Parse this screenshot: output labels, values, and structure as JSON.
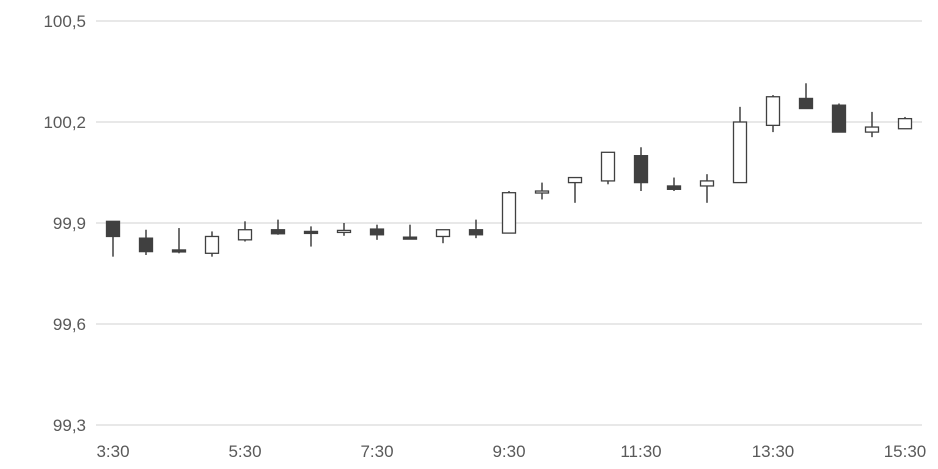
{
  "chart_data": {
    "type": "candlestick",
    "title": "",
    "xlabel": "",
    "ylabel": "",
    "y_tick_labels": [
      "100,5",
      "100,2",
      "99,9",
      "99,6",
      "99,3"
    ],
    "y_ticks": [
      100.5,
      100.2,
      99.9,
      99.6,
      99.3
    ],
    "ylim": [
      99.3,
      100.5
    ],
    "x_tick_labels": [
      "3:30",
      "5:30",
      "7:30",
      "9:30",
      "11:30",
      "13:30",
      "15:30"
    ],
    "x_tick_positions": [
      0,
      4,
      8,
      12,
      16,
      20,
      24
    ],
    "grid": true,
    "colors": {
      "up_fill": "#ffffff",
      "down_fill": "#404040",
      "stroke": "#404040",
      "grid": "#d9d9d9",
      "axis": "#d9d9d9",
      "label": "#595959"
    },
    "candles": [
      {
        "open": 99.905,
        "high": 99.905,
        "low": 99.8,
        "close": 99.86
      },
      {
        "open": 99.855,
        "high": 99.88,
        "low": 99.805,
        "close": 99.815
      },
      {
        "open": 99.82,
        "high": 99.885,
        "low": 99.81,
        "close": 99.815
      },
      {
        "open": 99.81,
        "high": 99.875,
        "low": 99.8,
        "close": 99.86
      },
      {
        "open": 99.85,
        "high": 99.905,
        "low": 99.845,
        "close": 99.88
      },
      {
        "open": 99.88,
        "high": 99.91,
        "low": 99.865,
        "close": 99.868
      },
      {
        "open": 99.875,
        "high": 99.89,
        "low": 99.83,
        "close": 99.872
      },
      {
        "open": 99.872,
        "high": 99.9,
        "low": 99.862,
        "close": 99.878
      },
      {
        "open": 99.882,
        "high": 99.895,
        "low": 99.85,
        "close": 99.865
      },
      {
        "open": 99.858,
        "high": 99.895,
        "low": 99.858,
        "close": 99.856
      },
      {
        "open": 99.86,
        "high": 99.88,
        "low": 99.84,
        "close": 99.88
      },
      {
        "open": 99.88,
        "high": 99.91,
        "low": 99.855,
        "close": 99.865
      },
      {
        "open": 99.87,
        "high": 99.995,
        "low": 99.87,
        "close": 99.99
      },
      {
        "open": 99.99,
        "high": 100.02,
        "low": 99.97,
        "close": 99.995
      },
      {
        "open": 100.02,
        "high": 100.035,
        "low": 99.96,
        "close": 100.035
      },
      {
        "open": 100.025,
        "high": 100.11,
        "low": 100.015,
        "close": 100.11
      },
      {
        "open": 100.1,
        "high": 100.125,
        "low": 99.995,
        "close": 100.02
      },
      {
        "open": 100.01,
        "high": 100.035,
        "low": 99.995,
        "close": 100.0
      },
      {
        "open": 100.01,
        "high": 100.045,
        "low": 99.96,
        "close": 100.025
      },
      {
        "open": 100.02,
        "high": 100.245,
        "low": 100.02,
        "close": 100.2
      },
      {
        "open": 100.19,
        "high": 100.28,
        "low": 100.17,
        "close": 100.275
      },
      {
        "open": 100.27,
        "high": 100.315,
        "low": 100.24,
        "close": 100.24
      },
      {
        "open": 100.25,
        "high": 100.255,
        "low": 100.17,
        "close": 100.17
      },
      {
        "open": 100.17,
        "high": 100.23,
        "low": 100.155,
        "close": 100.185
      },
      {
        "open": 100.18,
        "high": 100.215,
        "low": 100.18,
        "close": 100.21
      }
    ]
  }
}
